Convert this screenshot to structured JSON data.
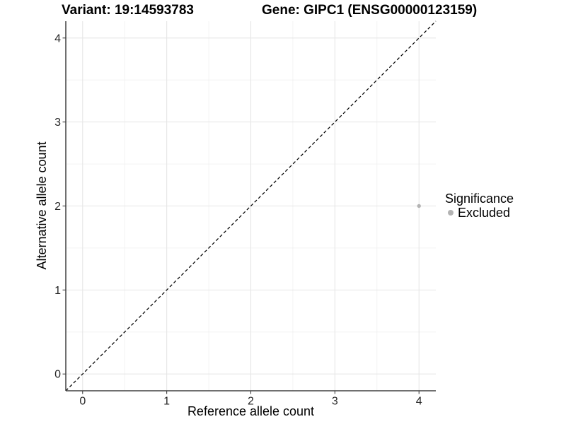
{
  "chart_data": {
    "type": "scatter",
    "title_left": "Variant: 19:14593783",
    "title_right": "Gene: GIPC1 (ENSG00000123159)",
    "xlabel": "Reference allele count",
    "ylabel": "Alternative allele count",
    "xlim": [
      -0.2,
      4.2
    ],
    "ylim": [
      -0.2,
      4.2
    ],
    "x_ticks": [
      0,
      1,
      2,
      3,
      4
    ],
    "y_ticks": [
      0,
      1,
      2,
      3,
      4
    ],
    "x_minor_ticks": [
      0.5,
      1.5,
      2.5,
      3.5
    ],
    "y_minor_ticks": [
      0.5,
      1.5,
      2.5,
      3.5
    ],
    "grid": true,
    "points": [
      {
        "x": 4,
        "y": 2,
        "significance": "Excluded"
      }
    ],
    "reference_line": {
      "type": "identity",
      "slope": 1,
      "intercept": 0,
      "style": "dashed",
      "color": "#000000"
    },
    "legend": {
      "title": "Significance",
      "position": "right",
      "items": [
        {
          "label": "Excluded",
          "color": "#b3b3b3"
        }
      ]
    },
    "colors": {
      "background": "#ffffff",
      "grid_major": "#e6e6e6",
      "grid_minor": "#f0f0f0",
      "axis": "#404040",
      "tick": "#404040",
      "tick_label": "#262626",
      "point": "#b3b3b3"
    }
  }
}
